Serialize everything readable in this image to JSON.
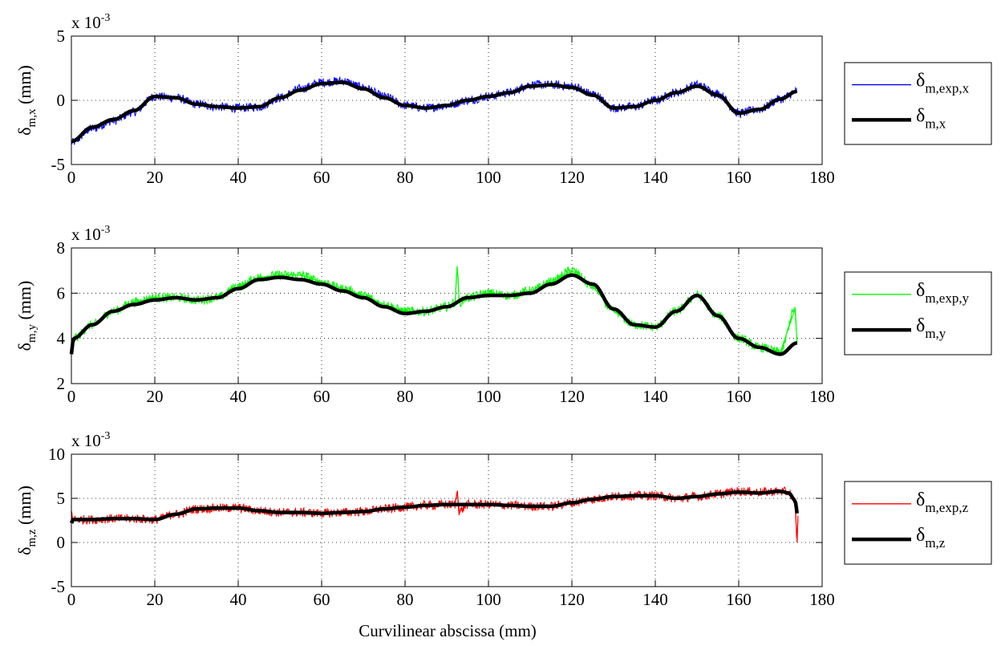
{
  "figure": {
    "xlabel": "Curvilinear abscissa (mm)"
  },
  "chart_data": [
    {
      "type": "line",
      "panel": "x",
      "ylabel": {
        "main": "δ",
        "sub": "m,x",
        "unit": "(mm)"
      },
      "scale_prefix": "x 10",
      "scale_exponent": "-3",
      "xlim": [
        0,
        180
      ],
      "ylim": [
        -5,
        5
      ],
      "xticks": [
        0,
        20,
        40,
        60,
        80,
        100,
        120,
        140,
        160,
        180
      ],
      "yticks": [
        -5,
        0,
        5
      ],
      "grid": true,
      "legend_position": "right-outside",
      "series": [
        {
          "legend": {
            "main": "δ",
            "sub": "m,exp,x"
          },
          "color": "#0000ff",
          "style": "noisy",
          "x": [
            0,
            5,
            10,
            15,
            20,
            25,
            30,
            35,
            40,
            45,
            50,
            55,
            60,
            65,
            70,
            75,
            80,
            85,
            90,
            95,
            100,
            105,
            110,
            115,
            120,
            125,
            130,
            135,
            140,
            145,
            150,
            155,
            160,
            165,
            170,
            174
          ],
          "y": [
            -3.3,
            -2.2,
            -1.6,
            -0.9,
            0.3,
            0.2,
            -0.3,
            -0.5,
            -0.6,
            -0.5,
            0.2,
            0.9,
            1.4,
            1.5,
            1.0,
            0.3,
            -0.4,
            -0.6,
            -0.4,
            0.0,
            0.3,
            0.6,
            1.2,
            1.2,
            1.1,
            0.5,
            -0.6,
            -0.5,
            0.0,
            0.6,
            1.2,
            0.5,
            -1.0,
            -0.7,
            0.1,
            0.7
          ]
        },
        {
          "legend": {
            "main": "δ",
            "sub": "m,x"
          },
          "color": "#000000",
          "style": "smooth",
          "x": [
            0,
            5,
            10,
            15,
            20,
            25,
            30,
            35,
            40,
            45,
            50,
            55,
            60,
            65,
            70,
            75,
            80,
            85,
            90,
            95,
            100,
            105,
            110,
            115,
            120,
            125,
            130,
            135,
            140,
            145,
            150,
            155,
            160,
            165,
            170,
            174
          ],
          "y": [
            -3.2,
            -2.1,
            -1.5,
            -0.8,
            0.3,
            0.2,
            -0.3,
            -0.5,
            -0.6,
            -0.5,
            0.2,
            0.8,
            1.3,
            1.4,
            0.9,
            0.2,
            -0.4,
            -0.6,
            -0.4,
            0.0,
            0.3,
            0.6,
            1.1,
            1.2,
            1.0,
            0.4,
            -0.6,
            -0.5,
            0.0,
            0.6,
            1.1,
            0.4,
            -1.0,
            -0.7,
            0.1,
            0.7
          ]
        }
      ]
    },
    {
      "type": "line",
      "panel": "y",
      "ylabel": {
        "main": "δ",
        "sub": "m,y",
        "unit": "(mm)"
      },
      "scale_prefix": "x 10",
      "scale_exponent": "-3",
      "xlim": [
        0,
        180
      ],
      "ylim": [
        2,
        8
      ],
      "xticks": [
        0,
        20,
        40,
        60,
        80,
        100,
        120,
        140,
        160,
        180
      ],
      "yticks": [
        2,
        4,
        6,
        8
      ],
      "grid": true,
      "legend_position": "right-outside",
      "series": [
        {
          "legend": {
            "main": "δ",
            "sub": "m,exp,y"
          },
          "color": "#00ff00",
          "style": "noisy",
          "x": [
            0,
            0.5,
            5,
            10,
            15,
            20,
            25,
            30,
            35,
            40,
            45,
            50,
            55,
            60,
            65,
            70,
            75,
            80,
            85,
            90,
            92,
            92.5,
            93,
            95,
            100,
            105,
            110,
            115,
            120,
            125,
            130,
            135,
            140,
            145,
            150,
            155,
            160,
            165,
            170,
            173.5,
            174
          ],
          "y": [
            3.3,
            4.0,
            4.6,
            5.2,
            5.6,
            5.8,
            5.8,
            5.7,
            5.8,
            6.3,
            6.7,
            6.8,
            6.8,
            6.5,
            6.2,
            5.9,
            5.5,
            5.2,
            5.2,
            5.4,
            5.6,
            7.2,
            5.6,
            5.8,
            6.0,
            5.9,
            6.1,
            6.5,
            7.0,
            6.3,
            5.2,
            4.6,
            4.5,
            5.2,
            5.9,
            5.0,
            4.0,
            3.6,
            3.4,
            5.3,
            3.8
          ]
        },
        {
          "legend": {
            "main": "δ",
            "sub": "m,y"
          },
          "color": "#000000",
          "style": "smooth",
          "x": [
            0,
            0.5,
            5,
            10,
            15,
            20,
            25,
            30,
            35,
            40,
            45,
            50,
            55,
            60,
            65,
            70,
            75,
            80,
            85,
            90,
            95,
            100,
            105,
            110,
            115,
            120,
            125,
            130,
            135,
            140,
            145,
            150,
            155,
            160,
            165,
            170,
            174
          ],
          "y": [
            3.3,
            4.0,
            4.6,
            5.2,
            5.5,
            5.7,
            5.8,
            5.7,
            5.8,
            6.2,
            6.6,
            6.7,
            6.6,
            6.4,
            6.1,
            5.8,
            5.4,
            5.1,
            5.2,
            5.4,
            5.8,
            5.9,
            5.9,
            6.0,
            6.4,
            6.8,
            6.4,
            5.3,
            4.6,
            4.5,
            5.2,
            5.9,
            5.0,
            4.0,
            3.6,
            3.3,
            3.8
          ]
        }
      ]
    },
    {
      "type": "line",
      "panel": "z",
      "ylabel": {
        "main": "δ",
        "sub": "m,z",
        "unit": "(mm)"
      },
      "scale_prefix": "x 10",
      "scale_exponent": "-3",
      "xlim": [
        0,
        180
      ],
      "ylim": [
        -5,
        10
      ],
      "xticks": [
        0,
        20,
        40,
        60,
        80,
        100,
        120,
        140,
        160,
        180
      ],
      "yticks": [
        -5,
        0,
        5,
        10
      ],
      "grid": true,
      "legend_position": "right-outside",
      "series": [
        {
          "legend": {
            "main": "δ",
            "sub": "m,exp,z"
          },
          "color": "#ff0000",
          "style": "noisy",
          "x": [
            0,
            0.3,
            5,
            10,
            15,
            20,
            25,
            30,
            35,
            40,
            45,
            50,
            55,
            60,
            65,
            70,
            75,
            80,
            85,
            90,
            92,
            92.5,
            93,
            95,
            100,
            105,
            110,
            115,
            120,
            125,
            130,
            135,
            140,
            145,
            150,
            155,
            160,
            165,
            170,
            172,
            173.5,
            174,
            174.2
          ],
          "y": [
            3.5,
            2.6,
            2.6,
            2.7,
            2.7,
            2.6,
            3.2,
            3.8,
            3.9,
            3.9,
            3.6,
            3.4,
            3.4,
            3.3,
            3.4,
            3.5,
            3.8,
            4.0,
            4.2,
            4.3,
            4.3,
            5.8,
            3.5,
            4.3,
            4.3,
            4.2,
            4.1,
            4.1,
            4.5,
            4.9,
            5.2,
            5.3,
            5.3,
            5.0,
            5.2,
            5.5,
            5.8,
            5.7,
            5.8,
            5.7,
            4.5,
            0.0,
            3.0
          ]
        },
        {
          "legend": {
            "main": "δ",
            "sub": "m,z"
          },
          "color": "#000000",
          "style": "smooth",
          "x": [
            0,
            0.3,
            5,
            10,
            15,
            20,
            25,
            30,
            35,
            40,
            45,
            50,
            55,
            60,
            65,
            70,
            75,
            80,
            85,
            90,
            95,
            100,
            105,
            110,
            115,
            120,
            125,
            130,
            135,
            140,
            145,
            150,
            155,
            160,
            165,
            170,
            172,
            173.5,
            174
          ],
          "y": [
            2.2,
            2.6,
            2.6,
            2.7,
            2.7,
            2.6,
            3.2,
            3.8,
            3.9,
            3.9,
            3.6,
            3.4,
            3.4,
            3.3,
            3.4,
            3.5,
            3.8,
            4.0,
            4.2,
            4.3,
            4.3,
            4.3,
            4.2,
            4.1,
            4.1,
            4.5,
            4.9,
            5.2,
            5.3,
            5.3,
            5.0,
            5.2,
            5.5,
            5.7,
            5.6,
            5.8,
            5.6,
            4.8,
            3.3
          ]
        }
      ]
    }
  ]
}
